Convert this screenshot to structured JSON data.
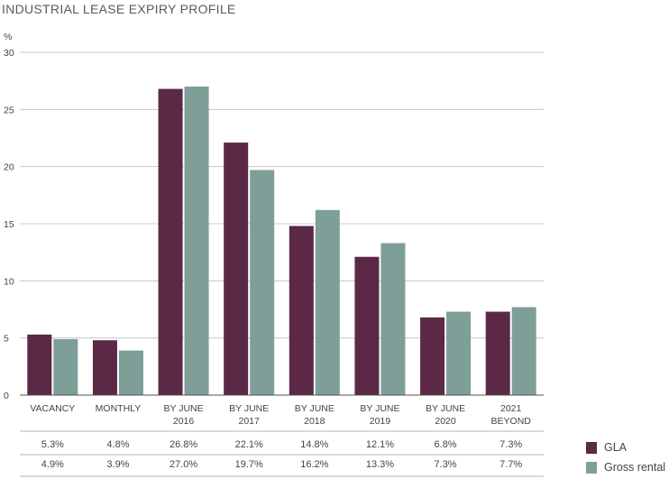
{
  "title": "INDUSTRIAL LEASE EXPIRY PROFILE",
  "colors": {
    "gla": "#5b2846",
    "gross": "#7e9e98",
    "grid": "#bdbdbd",
    "axis": "#555555"
  },
  "chart_data": {
    "type": "bar",
    "title": "INDUSTRIAL LEASE EXPIRY PROFILE",
    "ylabel": "%",
    "xlabel": "",
    "ylim": [
      0,
      30
    ],
    "yticks": [
      0,
      5,
      10,
      15,
      20,
      25,
      30
    ],
    "grid": true,
    "legend": "bottom-right",
    "categories": [
      [
        "VACANCY"
      ],
      [
        "MONTHLY"
      ],
      [
        "BY JUNE",
        "2016"
      ],
      [
        "BY JUNE",
        "2017"
      ],
      [
        "BY JUNE",
        "2018"
      ],
      [
        "BY JUNE",
        "2019"
      ],
      [
        "BY JUNE",
        "2020"
      ],
      [
        "2021",
        "BEYOND"
      ]
    ],
    "series": [
      {
        "name": "GLA",
        "color": "#5b2846",
        "values": [
          5.3,
          4.8,
          26.8,
          22.1,
          14.8,
          12.1,
          6.8,
          7.3
        ],
        "labels": [
          "5.3%",
          "4.8%",
          "26.8%",
          "22.1%",
          "14.8%",
          "12.1%",
          "6.8%",
          "7.3%"
        ]
      },
      {
        "name": "Gross rental",
        "color": "#7e9e98",
        "values": [
          4.9,
          3.9,
          27.0,
          19.7,
          16.2,
          13.3,
          7.3,
          7.7
        ],
        "labels": [
          "4.9%",
          "3.9%",
          "27.0%",
          "19.7%",
          "16.2%",
          "13.3%",
          "7.3%",
          "7.7%"
        ]
      }
    ]
  }
}
